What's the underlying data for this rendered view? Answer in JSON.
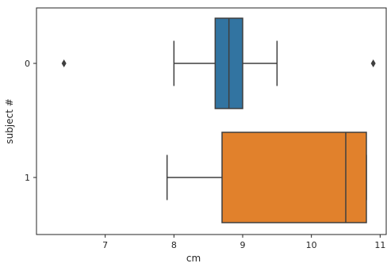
{
  "chart_data": {
    "type": "boxplot",
    "orientation": "horizontal",
    "xlabel": "cm",
    "ylabel": "subject #",
    "xlim": [
      6.0,
      11.1
    ],
    "x_ticks": [
      7,
      8,
      9,
      10,
      11
    ],
    "categories": [
      "0",
      "1"
    ],
    "grid": false,
    "series": [
      {
        "category": "0",
        "color": "#3274a1",
        "whisker_low": 8.0,
        "q1": 8.6,
        "median": 8.8,
        "q3": 9.0,
        "whisker_high": 9.5,
        "outliers": [
          6.4,
          10.9
        ]
      },
      {
        "category": "1",
        "color": "#e1812c",
        "whisker_low": 7.9,
        "q1": 8.7,
        "median": 10.5,
        "q3": 10.8,
        "whisker_high": 10.8,
        "outliers": []
      }
    ]
  },
  "axes": {
    "edge_color": "#262626",
    "line_color": "#3f3f3f"
  }
}
